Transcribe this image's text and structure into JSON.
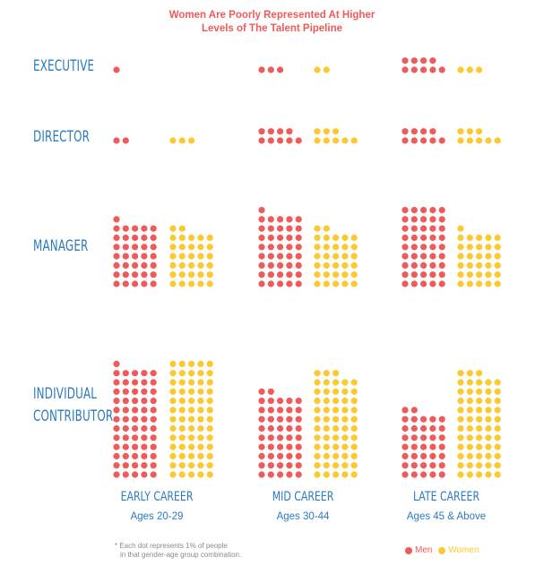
{
  "title": {
    "line1": "Women Are Poorly Represented At Higher",
    "line2": "Levels of The Talent Pipeline"
  },
  "colors": {
    "men": "#ef5a5a",
    "women": "#fbc930",
    "label": "#2b7bbf",
    "title": "#ef5a5a"
  },
  "chart_data": {
    "type": "dot-matrix",
    "title": "Women Are Poorly Represented At Higher Levels of The Talent Pipeline",
    "levels": [
      "EXECUTIVE",
      "DIRECTOR",
      "MANAGER",
      "INDIVIDUAL CONTRIBUTOR"
    ],
    "career_stages": [
      {
        "name": "EARLY CAREER",
        "ages": "Ages 20-29"
      },
      {
        "name": "MID CAREER",
        "ages": "Ages 30-44"
      },
      {
        "name": "LATE CAREER",
        "ages": "Ages 45 & Above"
      }
    ],
    "unit": "Each dot represents 1% of people in that gender-age group combination.",
    "series": [
      {
        "name": "Men",
        "values": {
          "EARLY CAREER": [
            1,
            2,
            36,
            61
          ],
          "MID CAREER": [
            3,
            9,
            41,
            47
          ],
          "LATE CAREER": [
            9,
            9,
            45,
            37
          ]
        }
      },
      {
        "name": "Women",
        "values": {
          "EARLY CAREER": [
            0,
            3,
            32,
            65
          ],
          "MID CAREER": [
            2,
            8,
            32,
            58
          ],
          "LATE CAREER": [
            3,
            8,
            31,
            58
          ]
        }
      }
    ]
  },
  "footnote": {
    "line1": "* Each dot represents 1% of people",
    "line2": "in that gender-age group combination."
  },
  "legend": {
    "men": "Men",
    "women": "Women"
  }
}
